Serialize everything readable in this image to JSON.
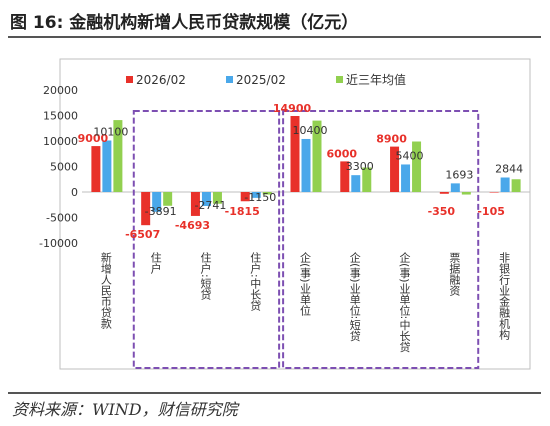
{
  "figure": {
    "title": "图 16:  金融机构新增人民币贷款规模（亿元）",
    "source": "资料来源：WIND，财信研究院"
  },
  "chart_data": {
    "type": "bar",
    "categories": [
      "新增人民币贷款",
      "住户",
      "住户:短贷",
      "住户:中长贷",
      "企(事)业单位",
      "企(事)业单位:短贷",
      "企(事)业单位:中长贷",
      "票据融资",
      "非银行业金融机构"
    ],
    "series": [
      {
        "name": "2026/02",
        "color": "#e8312a",
        "values": [
          9000,
          -6507,
          -4693,
          -1815,
          14900,
          6000,
          8900,
          -350,
          -105
        ]
      },
      {
        "name": "2025/02",
        "color": "#4aa8ea",
        "values": [
          10100,
          -3891,
          -2741,
          -1150,
          10400,
          3300,
          5400,
          1693,
          2844
        ]
      },
      {
        "name": "近三年均值",
        "color": "#92d050",
        "values": [
          14100,
          -2700,
          -2300,
          -500,
          14000,
          4800,
          9900,
          -500,
          2500
        ]
      }
    ],
    "ylim": [
      -10000,
      20000
    ],
    "yticks": [
      "20000",
      "15000",
      "10000",
      "5000",
      "0",
      "-5000",
      "-10000"
    ],
    "legend_position": "top",
    "red_labels": [
      "9000",
      "-6507",
      "-4693",
      "-1815",
      "14900",
      "6000",
      "8900",
      "-350",
      "-105"
    ],
    "blue_labels": [
      "10100",
      "-3891",
      "-2741",
      "-1150",
      "10400",
      "3300",
      "5400",
      "1693",
      "2844"
    ],
    "highlight_groups": [
      [
        1,
        3
      ],
      [
        4,
        7
      ]
    ],
    "highlight_color": "#7d4fb2"
  }
}
